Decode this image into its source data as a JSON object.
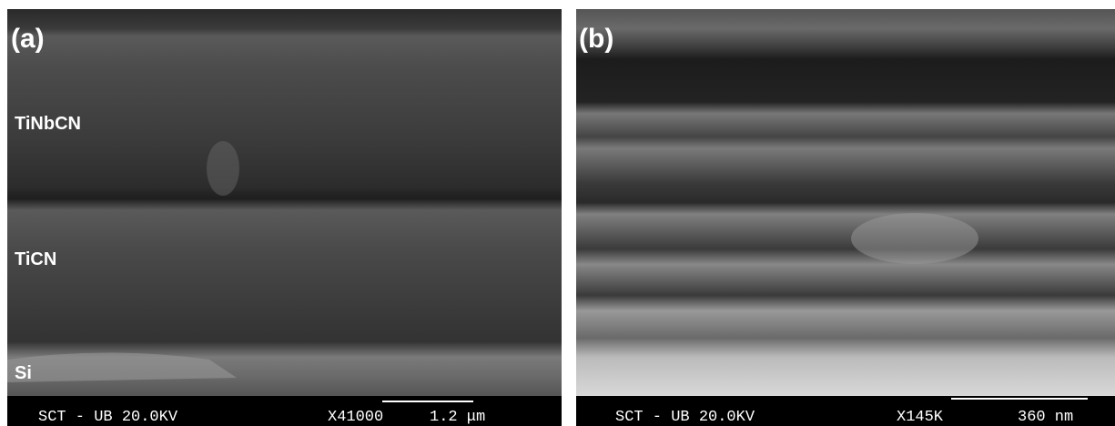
{
  "panels": [
    {
      "label": "(a)",
      "layers": [
        "TiNbCN",
        "TiCN",
        "Si"
      ],
      "footer": {
        "info": "SCT - UB 20.0KV",
        "magnification": "X41000",
        "scale": "1.2 μm"
      }
    },
    {
      "label": "(b)",
      "footer": {
        "info": "SCT - UB 20.0KV",
        "magnification": "X145K",
        "scale": "360 nm"
      }
    }
  ]
}
